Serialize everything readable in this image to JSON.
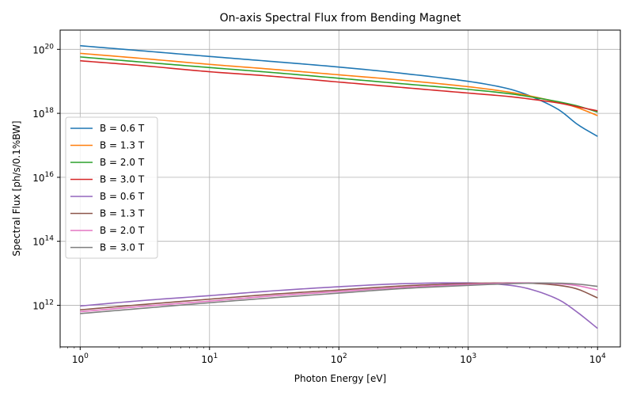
{
  "chart_data": {
    "type": "line",
    "title": "On-axis Spectral Flux from Bending Magnet",
    "xlabel": "Photon Energy [eV]",
    "ylabel": "Spectral Flux [ph/s/0.1%BW]",
    "xscale": "log",
    "yscale": "log",
    "xlim": [
      0.7,
      15000
    ],
    "ylim": [
      50000000000.0,
      4e+20
    ],
    "grid": true,
    "legend_position": "center-left",
    "x_ticks": [
      {
        "value": 1,
        "base": "10",
        "exp": "0"
      },
      {
        "value": 10,
        "base": "10",
        "exp": "1"
      },
      {
        "value": 100,
        "base": "10",
        "exp": "2"
      },
      {
        "value": 1000,
        "base": "10",
        "exp": "3"
      },
      {
        "value": 10000,
        "base": "10",
        "exp": "4"
      }
    ],
    "y_ticks": [
      {
        "value": 1000000000000.0,
        "base": "10",
        "exp": "12"
      },
      {
        "value": 100000000000000.0,
        "base": "10",
        "exp": "14"
      },
      {
        "value": 1e+16,
        "base": "10",
        "exp": "16"
      },
      {
        "value": 1e+18,
        "base": "10",
        "exp": "18"
      },
      {
        "value": 1e+20,
        "base": "10",
        "exp": "20"
      }
    ],
    "x": [
      1,
      3,
      10,
      30,
      100,
      300,
      1000,
      2000,
      3000,
      5000,
      7000,
      10000
    ],
    "series": [
      {
        "name": "B = 0.6 T",
        "color": "#1f77b4",
        "values": [
          1.3e+20,
          9e+19,
          6e+19,
          4.2e+19,
          2.8e+19,
          1.8e+19,
          1e+19,
          6e+18,
          3.5e+18,
          1.3e+18,
          4.5e+17,
          1.9e+17
        ]
      },
      {
        "name": "B = 1.3 T",
        "color": "#ff7f0e",
        "values": [
          7.5e+19,
          5.2e+19,
          3.4e+19,
          2.4e+19,
          1.6e+19,
          1.1e+19,
          6.8e+18,
          4.7e+18,
          3.5e+18,
          2.2e+18,
          1.5e+18,
          8.5e+17
        ]
      },
      {
        "name": "B = 2.0 T",
        "color": "#2ca02c",
        "values": [
          5.8e+19,
          4e+19,
          2.7e+19,
          1.9e+19,
          1.25e+19,
          8.5e+18,
          5.6e+18,
          4.2e+18,
          3.3e+18,
          2.3e+18,
          1.7e+18,
          1.1e+18
        ]
      },
      {
        "name": "B = 3.0 T",
        "color": "#d62728",
        "values": [
          4.4e+19,
          3.1e+19,
          2e+19,
          1.45e+19,
          9.5e+18,
          6.5e+18,
          4.3e+18,
          3.4e+18,
          2.8e+18,
          2.1e+18,
          1.6e+18,
          1.2e+18
        ]
      },
      {
        "name": "B = 0.6 T",
        "color": "#9467bd",
        "values": [
          950000000000.0,
          1400000000000.0,
          2000000000000.0,
          2800000000000.0,
          3800000000000.0,
          4700000000000.0,
          5000000000000.0,
          4300000000000.0,
          3200000000000.0,
          1500000000000.0,
          600000000000.0,
          190000000000.0
        ]
      },
      {
        "name": "B = 1.3 T",
        "color": "#8c564b",
        "values": [
          720000000000.0,
          1050000000000.0,
          1550000000000.0,
          2200000000000.0,
          3000000000000.0,
          4000000000000.0,
          4800000000000.0,
          5000000000000.0,
          4900000000000.0,
          4200000000000.0,
          3200000000000.0,
          1700000000000.0
        ]
      },
      {
        "name": "B = 2.0 T",
        "color": "#e377c2",
        "values": [
          630000000000.0,
          920000000000.0,
          1350000000000.0,
          1950000000000.0,
          2700000000000.0,
          3600000000000.0,
          4500000000000.0,
          4900000000000.0,
          5000000000000.0,
          4700000000000.0,
          4100000000000.0,
          3000000000000.0
        ]
      },
      {
        "name": "B = 3.0 T",
        "color": "#7f7f7f",
        "values": [
          550000000000.0,
          800000000000.0,
          1200000000000.0,
          1700000000000.0,
          2400000000000.0,
          3300000000000.0,
          4200000000000.0,
          4700000000000.0,
          4900000000000.0,
          4900000000000.0,
          4600000000000.0,
          3900000000000.0
        ]
      }
    ]
  }
}
